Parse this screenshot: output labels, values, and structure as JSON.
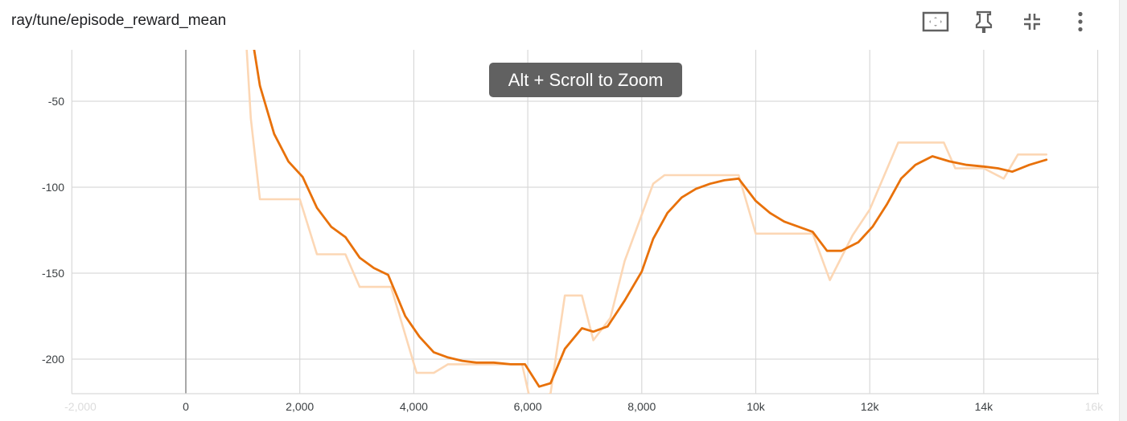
{
  "header": {
    "title": "ray/tune/episode_reward_mean",
    "toolbar": [
      {
        "name": "fit-domain-icon",
        "label": "Fit domain"
      },
      {
        "name": "pin-icon",
        "label": "Pin"
      },
      {
        "name": "collapse-icon",
        "label": "Collapse"
      },
      {
        "name": "more-vert-icon",
        "label": "More"
      }
    ]
  },
  "tooltip": {
    "text": "Alt + Scroll to Zoom"
  },
  "colors": {
    "smoothed": "#e8710a",
    "raw": "#fcd7b5",
    "grid": "#d9d9d9",
    "zero_axis": "#a8a8a8"
  },
  "chart_data": {
    "type": "line",
    "title": "ray/tune/episode_reward_mean",
    "xlabel": "",
    "ylabel": "",
    "xlim": [
      -2000,
      16000
    ],
    "ylim": [
      -220,
      -20
    ],
    "x_ticks": [
      {
        "value": -2000,
        "label": "-2,000",
        "faded": true
      },
      {
        "value": 0,
        "label": "0"
      },
      {
        "value": 2000,
        "label": "2,000"
      },
      {
        "value": 4000,
        "label": "4,000"
      },
      {
        "value": 6000,
        "label": "6,000"
      },
      {
        "value": 8000,
        "label": "8,000"
      },
      {
        "value": 10000,
        "label": "10k"
      },
      {
        "value": 12000,
        "label": "12k"
      },
      {
        "value": 14000,
        "label": "14k"
      },
      {
        "value": 16000,
        "label": "16k",
        "faded": true
      }
    ],
    "y_ticks": [
      {
        "value": -50,
        "label": "-50"
      },
      {
        "value": -100,
        "label": "-100"
      },
      {
        "value": -150,
        "label": "-150"
      },
      {
        "value": -200,
        "label": "-200"
      }
    ],
    "grid": true,
    "series": [
      {
        "role": "raw",
        "x": [
          1050,
          1140,
          1300,
          2000,
          2300,
          2800,
          3050,
          3600,
          4050,
          4350,
          4600,
          5100,
          5900,
          6050,
          6400,
          6650,
          6950,
          7150,
          7450,
          7700,
          8200,
          8400,
          9000,
          9700,
          10000,
          10500,
          11000,
          11300,
          11700,
          12000,
          12500,
          13300,
          13500,
          14000,
          14350,
          14600,
          15100
        ],
        "y": [
          -10,
          -60,
          -107,
          -107,
          -139,
          -139,
          -158,
          -158,
          -208,
          -208,
          -203,
          -203,
          -203,
          -225,
          -220,
          -163,
          -163,
          -189,
          -176,
          -143,
          -98,
          -93,
          -93,
          -93,
          -127,
          -127,
          -127,
          -154,
          -128,
          -113,
          -74,
          -74,
          -89,
          -89,
          -95,
          -81,
          -81
        ]
      },
      {
        "role": "smoothed",
        "x": [
          1150,
          1300,
          1550,
          1800,
          2050,
          2300,
          2550,
          2800,
          3050,
          3300,
          3550,
          3850,
          4100,
          4350,
          4600,
          4850,
          5100,
          5400,
          5700,
          5950,
          6200,
          6400,
          6650,
          6950,
          7150,
          7400,
          7700,
          8000,
          8200,
          8450,
          8700,
          8950,
          9200,
          9450,
          9700,
          10000,
          10250,
          10500,
          10750,
          11000,
          11250,
          11500,
          11800,
          12050,
          12300,
          12550,
          12800,
          13100,
          13400,
          13700,
          14000,
          14250,
          14500,
          14800,
          15100
        ],
        "y": [
          -10,
          -41,
          -69,
          -85,
          -94,
          -112,
          -123,
          -129,
          -141,
          -147,
          -151,
          -175,
          -187,
          -196,
          -199,
          -201,
          -202,
          -202,
          -203,
          -203,
          -216,
          -214,
          -194,
          -182,
          -184,
          -181,
          -166,
          -149,
          -130,
          -115,
          -106,
          -101,
          -98,
          -96,
          -95,
          -108,
          -115,
          -120,
          -123,
          -126,
          -137,
          -137,
          -132,
          -123,
          -110,
          -95,
          -87,
          -82,
          -85,
          -87,
          -88,
          -89,
          -91,
          -87,
          -84
        ]
      }
    ]
  }
}
